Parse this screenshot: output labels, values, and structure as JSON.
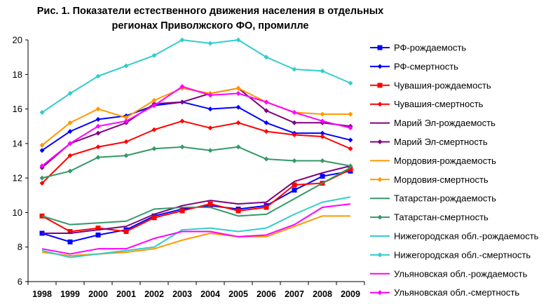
{
  "chart_data": {
    "type": "line",
    "title_line1": "Рис. 1. Показатели естественного движения населения в отдельных",
    "title_line2": "регионах Приволжского ФО, промилле",
    "xlabel": "",
    "ylabel": "",
    "categories": [
      "1998",
      "1999",
      "2000",
      "2001",
      "2002",
      "2003",
      "2004",
      "2005",
      "2006",
      "2007",
      "2008",
      "2009"
    ],
    "ylim": [
      6,
      20
    ],
    "yticks": [
      6,
      8,
      10,
      12,
      14,
      16,
      18,
      20
    ],
    "grid": false,
    "legend_position": "right",
    "series": [
      {
        "name": "РФ-рождаемость",
        "color": "#0000FF",
        "marker": "square",
        "values": [
          8.8,
          8.3,
          8.7,
          9.0,
          9.8,
          10.2,
          10.4,
          10.2,
          10.4,
          11.3,
          12.1,
          12.4
        ]
      },
      {
        "name": "РФ-смертность",
        "color": "#0000FF",
        "marker": "diamond",
        "values": [
          13.6,
          14.7,
          15.4,
          15.6,
          16.2,
          16.4,
          16.0,
          16.1,
          15.2,
          14.6,
          14.6,
          14.2
        ]
      },
      {
        "name": "Чувашия-рождаемость",
        "color": "#FF0000",
        "marker": "square",
        "values": [
          9.8,
          8.9,
          9.1,
          8.9,
          9.7,
          10.1,
          10.5,
          10.1,
          10.3,
          11.6,
          11.7,
          12.5
        ]
      },
      {
        "name": "Чувашия-смертность",
        "color": "#FF0000",
        "marker": "diamond",
        "values": [
          11.7,
          13.3,
          13.8,
          14.1,
          14.8,
          15.3,
          14.9,
          15.2,
          14.7,
          14.5,
          14.4,
          13.7
        ]
      },
      {
        "name": "Марий Эл-рождаемость",
        "color": "#800080",
        "marker": "none",
        "values": [
          8.8,
          8.8,
          9.0,
          9.2,
          9.9,
          10.4,
          10.7,
          10.5,
          10.6,
          11.8,
          12.3,
          12.7
        ]
      },
      {
        "name": "Марий Эл-смертность",
        "color": "#800080",
        "marker": "diamond",
        "values": [
          12.6,
          14.0,
          14.6,
          15.2,
          16.3,
          16.4,
          16.9,
          17.2,
          15.9,
          15.2,
          15.2,
          15.0
        ]
      },
      {
        "name": "Мордовия-рождаемость",
        "color": "#FF9900",
        "marker": "none",
        "values": [
          7.7,
          7.5,
          7.6,
          7.7,
          7.9,
          8.4,
          8.8,
          8.6,
          8.6,
          9.2,
          9.8,
          9.8
        ]
      },
      {
        "name": "Мордовия-смертность",
        "color": "#FF9900",
        "marker": "diamond",
        "values": [
          13.9,
          15.2,
          16.0,
          15.5,
          16.5,
          17.2,
          16.9,
          17.2,
          16.4,
          15.8,
          15.7,
          15.7
        ]
      },
      {
        "name": "Татарстан-рождаемость",
        "color": "#339966",
        "marker": "none",
        "values": [
          9.8,
          9.3,
          9.4,
          9.5,
          10.2,
          10.3,
          10.3,
          9.8,
          9.9,
          10.8,
          11.7,
          12.6
        ]
      },
      {
        "name": "Татарстан-смертность",
        "color": "#339966",
        "marker": "diamond",
        "values": [
          12.0,
          12.4,
          13.2,
          13.3,
          13.7,
          13.8,
          13.6,
          13.8,
          13.1,
          13.0,
          13.0,
          12.7
        ]
      },
      {
        "name": "Нижегородская обл.-рождаемость",
        "color": "#33CCCC",
        "marker": "none",
        "values": [
          7.8,
          7.4,
          7.6,
          7.8,
          8.0,
          9.0,
          9.1,
          8.9,
          9.1,
          9.9,
          10.6,
          10.9
        ]
      },
      {
        "name": "Нижегородская обл.-смертность",
        "color": "#33CCCC",
        "marker": "diamond",
        "values": [
          15.8,
          16.9,
          17.9,
          18.5,
          19.1,
          20.0,
          19.8,
          20.0,
          19.0,
          18.3,
          18.2,
          17.5
        ]
      },
      {
        "name": "Ульяновская обл.-рождаемость",
        "color": "#FF00FF",
        "marker": "none",
        "values": [
          7.9,
          7.6,
          7.9,
          7.9,
          8.5,
          8.9,
          8.9,
          8.6,
          8.7,
          9.3,
          10.3,
          10.5
        ]
      },
      {
        "name": "Ульяновская обл.-смертность",
        "color": "#FF00FF",
        "marker": "diamond",
        "values": [
          12.7,
          14.0,
          15.0,
          15.3,
          16.2,
          17.3,
          16.8,
          16.9,
          16.4,
          15.8,
          15.3,
          14.9
        ]
      }
    ]
  }
}
